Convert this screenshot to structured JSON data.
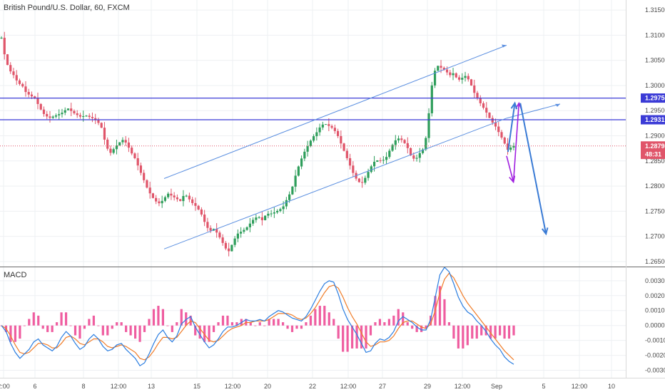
{
  "header": {
    "title": "British Pound/U.S. Dollar, 60, FXCM"
  },
  "macd_label": "MACD",
  "colors": {
    "up": "#2e9e5b",
    "down": "#e0556a",
    "channel": "#5b8fe0",
    "level": "#3b3bd6",
    "price_line": "#e0556a",
    "macd": "#2a7de0",
    "signal": "#f07c28",
    "hist": "#ef5da0",
    "arrow_purple": "#a020e0",
    "arrow_blue": "#3a7bd5"
  },
  "chart_data": [
    {
      "type": "candlestick",
      "title": "British Pound/U.S. Dollar, 60, FXCM",
      "x_axis_labels": [
        "2:00",
        "6",
        "8",
        "12:00",
        "13",
        "15",
        "12:00",
        "20",
        "22",
        "12:00",
        "27",
        "29",
        "12:00",
        "Sep",
        "5",
        "12:00",
        "10"
      ],
      "y_ticks": [
        "1.31500",
        "1.31000",
        "1.30500",
        "1.30000",
        "1.29500",
        "1.29000",
        "1.28500",
        "1.28000",
        "1.27500",
        "1.27000",
        "1.26500"
      ],
      "ylim": [
        1.264,
        1.317
      ],
      "price_tags": [
        {
          "label": "1.29750",
          "value": 1.2975,
          "kind": "level"
        },
        {
          "label": "1.29319",
          "value": 1.29319,
          "kind": "level"
        },
        {
          "label": "1.28798",
          "value": 1.28798,
          "kind": "last"
        },
        {
          "label": "48:31",
          "value": 1.2863,
          "kind": "countdown"
        }
      ],
      "horizontal_levels": [
        1.2975,
        1.29319
      ],
      "last_price": 1.28798,
      "close_path": [
        [
          0,
          1.3095
        ],
        [
          4,
          1.305
        ],
        [
          8,
          1.303
        ],
        [
          12,
          1.302
        ],
        [
          16,
          1.3005
        ],
        [
          20,
          1.3
        ],
        [
          24,
          1.2985
        ],
        [
          28,
          1.298
        ],
        [
          32,
          1.2975
        ],
        [
          36,
          1.296
        ],
        [
          40,
          1.2945
        ],
        [
          46,
          1.2935
        ],
        [
          52,
          1.294
        ],
        [
          58,
          1.2945
        ],
        [
          64,
          1.2955
        ],
        [
          70,
          1.2945
        ],
        [
          76,
          1.2938
        ],
        [
          82,
          1.294
        ],
        [
          88,
          1.2935
        ],
        [
          93,
          1.2928
        ],
        [
          97,
          1.2915
        ],
        [
          101,
          1.288
        ],
        [
          105,
          1.2865
        ],
        [
          109,
          1.2875
        ],
        [
          113,
          1.2885
        ],
        [
          117,
          1.2892
        ],
        [
          121,
          1.2885
        ],
        [
          125,
          1.2868
        ],
        [
          129,
          1.2855
        ],
        [
          133,
          1.2835
        ],
        [
          137,
          1.2815
        ],
        [
          141,
          1.2795
        ],
        [
          145,
          1.278
        ],
        [
          149,
          1.277
        ],
        [
          153,
          1.2765
        ],
        [
          157,
          1.2775
        ],
        [
          161,
          1.2785
        ],
        [
          165,
          1.278
        ],
        [
          169,
          1.2775
        ],
        [
          173,
          1.277
        ],
        [
          177,
          1.2785
        ],
        [
          181,
          1.2775
        ],
        [
          185,
          1.2765
        ],
        [
          189,
          1.2758
        ],
        [
          193,
          1.2745
        ],
        [
          197,
          1.2725
        ],
        [
          201,
          1.271
        ],
        [
          205,
          1.2715
        ],
        [
          209,
          1.2705
        ],
        [
          213,
          1.269
        ],
        [
          217,
          1.2675
        ],
        [
          220,
          1.267
        ],
        [
          224,
          1.269
        ],
        [
          228,
          1.2705
        ],
        [
          232,
          1.271
        ],
        [
          236,
          1.2715
        ],
        [
          240,
          1.2725
        ],
        [
          244,
          1.2735
        ],
        [
          248,
          1.274
        ],
        [
          252,
          1.2732
        ],
        [
          256,
          1.2745
        ],
        [
          260,
          1.2745
        ],
        [
          264,
          1.2748
        ],
        [
          268,
          1.2752
        ],
        [
          272,
          1.2758
        ],
        [
          276,
          1.2775
        ],
        [
          280,
          1.279
        ],
        [
          284,
          1.282
        ],
        [
          288,
          1.2845
        ],
        [
          292,
          1.2865
        ],
        [
          296,
          1.288
        ],
        [
          300,
          1.2895
        ],
        [
          304,
          1.2905
        ],
        [
          308,
          1.2918
        ],
        [
          312,
          1.2925
        ],
        [
          316,
          1.292
        ],
        [
          320,
          1.2915
        ],
        [
          324,
          1.2905
        ],
        [
          328,
          1.2885
        ],
        [
          332,
          1.2865
        ],
        [
          336,
          1.2845
        ],
        [
          340,
          1.2825
        ],
        [
          344,
          1.281
        ],
        [
          348,
          1.2805
        ],
        [
          352,
          1.2818
        ],
        [
          356,
          1.2835
        ],
        [
          360,
          1.2848
        ],
        [
          364,
          1.2852
        ],
        [
          368,
          1.285
        ],
        [
          372,
          1.2858
        ],
        [
          376,
          1.2875
        ],
        [
          380,
          1.289
        ],
        [
          384,
          1.2895
        ],
        [
          388,
          1.289
        ],
        [
          392,
          1.2878
        ],
        [
          396,
          1.2858
        ],
        [
          400,
          1.2852
        ],
        [
          404,
          1.2865
        ],
        [
          408,
          1.2875
        ],
        [
          411,
          1.2905
        ],
        [
          414,
          1.2965
        ],
        [
          417,
          1.302
        ],
        [
          421,
          1.304
        ],
        [
          425,
          1.3035
        ],
        [
          429,
          1.303
        ],
        [
          433,
          1.302
        ],
        [
          437,
          1.3025
        ],
        [
          441,
          1.301
        ],
        [
          445,
          1.3015
        ],
        [
          449,
          1.302
        ],
        [
          453,
          1.3005
        ],
        [
          457,
          1.2985
        ],
        [
          461,
          1.297
        ],
        [
          465,
          1.2958
        ],
        [
          469,
          1.2945
        ],
        [
          473,
          1.293
        ],
        [
          477,
          1.292
        ],
        [
          481,
          1.2905
        ],
        [
          485,
          1.289
        ],
        [
          489,
          1.2872
        ],
        [
          493,
          1.2878
        ],
        [
          495,
          1.288
        ]
      ],
      "channel_upper": {
        "start": [
          0.0,
          1.2815
        ],
        "end": [
          1.0,
          1.308
        ]
      },
      "channel_lower": {
        "start": [
          0.0,
          1.2675
        ],
        "end": [
          1.0,
          1.2935
        ]
      },
      "annotations": [
        {
          "type": "purple-arrow-down",
          "from": [
            1.0,
            1.286
          ],
          "to": [
            1.02,
            1.2808
          ]
        },
        {
          "type": "purple-arrow-up",
          "from": [
            1.02,
            1.2808
          ],
          "to": [
            1.036,
            1.2965
          ]
        },
        {
          "type": "blue-arrow-up",
          "from": [
            1.004,
            1.2868
          ],
          "to": [
            1.024,
            1.2965
          ]
        },
        {
          "type": "blue-arrow-down",
          "from": [
            1.04,
            1.2965
          ],
          "to": [
            1.115,
            1.2705
          ]
        }
      ]
    },
    {
      "type": "line",
      "title": "MACD",
      "y_ticks": [
        "0.0030",
        "0.0020",
        "0.0010",
        "0.0000",
        "-0.0010",
        "-0.0020",
        "-0.0030"
      ],
      "ylim": [
        -0.0035,
        0.0039
      ],
      "series": [
        {
          "name": "",
          "role": "macd",
          "values": [
            0.0,
            -0.0004,
            -0.0012,
            -0.0018,
            -0.0022,
            -0.0019,
            -0.0016,
            -0.0011,
            -0.0009,
            -0.0013,
            -0.0015,
            -0.0017,
            -0.0014,
            -0.0008,
            -0.0004,
            -0.0007,
            -0.0012,
            -0.0016,
            -0.0014,
            -0.0009,
            -0.0006,
            -0.0009,
            -0.0014,
            -0.0017,
            -0.0016,
            -0.0013,
            -0.0012,
            -0.0016,
            -0.0019,
            -0.0022,
            -0.0027,
            -0.0025,
            -0.0019,
            -0.0012,
            -0.0006,
            -0.0003,
            -0.0008,
            -0.0011,
            -0.0007,
            0.0001,
            0.0004,
            0.0006,
            -0.0001,
            -0.0006,
            -0.0011,
            -0.0015,
            -0.0013,
            -0.0009,
            -0.0004,
            -0.0001,
            -0.0001,
            0.0,
            0.0002,
            0.0004,
            0.0003,
            0.0003,
            0.0004,
            0.0003,
            0.0006,
            0.0008,
            0.001,
            0.0009,
            0.0007,
            0.0005,
            0.0004,
            0.0003,
            0.0006,
            0.0011,
            0.0017,
            0.0023,
            0.0028,
            0.003,
            0.0029,
            0.0021,
            0.0011,
            0.0004,
            -0.0001,
            -0.0006,
            -0.0012,
            -0.0018,
            -0.0017,
            -0.0012,
            -0.0009,
            -0.001,
            -0.0008,
            -0.0004,
            0.0003,
            0.0006,
            0.0004,
            0.0002,
            -0.0001,
            -0.0003,
            -0.0003,
            0.0004,
            0.0019,
            0.0034,
            0.0039,
            0.0036,
            0.0028,
            0.0019,
            0.0013,
            0.0009,
            0.0007,
            0.0003,
            0.0,
            -0.0004,
            -0.0009,
            -0.0013,
            -0.0016,
            -0.0021,
            -0.0024,
            -0.0026
          ]
        },
        {
          "name": "",
          "role": "signal",
          "values": [
            0.0,
            -0.0002,
            -0.0007,
            -0.0013,
            -0.0018,
            -0.0019,
            -0.0018,
            -0.0015,
            -0.0012,
            -0.0012,
            -0.0013,
            -0.0015,
            -0.0015,
            -0.0012,
            -0.0008,
            -0.0007,
            -0.0009,
            -0.0012,
            -0.0013,
            -0.0011,
            -0.0009,
            -0.0009,
            -0.0011,
            -0.0014,
            -0.0015,
            -0.0014,
            -0.0013,
            -0.0014,
            -0.0016,
            -0.0018,
            -0.0022,
            -0.0023,
            -0.0021,
            -0.0017,
            -0.0012,
            -0.0008,
            -0.0008,
            -0.0009,
            -0.0008,
            -0.0004,
            0.0,
            0.0003,
            0.0002,
            -0.0002,
            -0.0006,
            -0.001,
            -0.0011,
            -0.001,
            -0.0007,
            -0.0004,
            -0.0002,
            -0.0001,
            0.0,
            0.0002,
            0.0002,
            0.0003,
            0.0003,
            0.0003,
            0.0004,
            0.0006,
            0.0008,
            0.0008,
            0.0008,
            0.0007,
            0.0005,
            0.0004,
            0.0005,
            0.0008,
            0.0012,
            0.0017,
            0.0022,
            0.0026,
            0.0027,
            0.0025,
            0.0019,
            0.0012,
            0.0006,
            0.0001,
            -0.0005,
            -0.0011,
            -0.0014,
            -0.0013,
            -0.0011,
            -0.0011,
            -0.001,
            -0.0007,
            -0.0002,
            0.0002,
            0.0003,
            0.0003,
            0.0001,
            -0.0001,
            -0.0002,
            0.0001,
            0.001,
            0.0022,
            0.0031,
            0.0035,
            0.0032,
            0.0026,
            0.002,
            0.0015,
            0.0011,
            0.0007,
            0.0003,
            -0.0001,
            -0.0005,
            -0.0009,
            -0.0013,
            -0.0017,
            -0.002,
            -0.0023
          ]
        }
      ]
    }
  ]
}
